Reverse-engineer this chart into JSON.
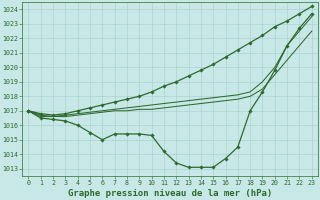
{
  "title": "Graphe pression niveau de la mer (hPa)",
  "hours": [
    0,
    1,
    2,
    3,
    4,
    5,
    6,
    7,
    8,
    9,
    10,
    11,
    12,
    13,
    14,
    15,
    16,
    17,
    18,
    19,
    20,
    21,
    22,
    23
  ],
  "line_top": [
    1017.0,
    1016.8,
    1016.7,
    1016.8,
    1017.0,
    1017.2,
    1017.4,
    1017.6,
    1017.8,
    1018.0,
    1018.3,
    1018.7,
    1019.0,
    1019.4,
    1019.8,
    1020.2,
    1020.7,
    1021.2,
    1021.7,
    1022.2,
    1022.8,
    1023.2,
    1023.7,
    1024.2
  ],
  "line_mid_high": [
    1017.0,
    1016.7,
    1016.6,
    1016.7,
    1016.8,
    1016.9,
    1017.0,
    1017.1,
    1017.2,
    1017.3,
    1017.4,
    1017.5,
    1017.6,
    1017.7,
    1017.8,
    1017.9,
    1018.0,
    1018.1,
    1018.3,
    1019.0,
    1020.0,
    1021.5,
    1022.5,
    1023.5
  ],
  "line_mid_low": [
    1017.0,
    1016.6,
    1016.6,
    1016.6,
    1016.7,
    1016.8,
    1016.9,
    1017.0,
    1017.0,
    1017.1,
    1017.1,
    1017.2,
    1017.3,
    1017.4,
    1017.5,
    1017.6,
    1017.7,
    1017.8,
    1018.0,
    1018.5,
    1019.5,
    1020.5,
    1021.5,
    1022.5
  ],
  "line_bottom": [
    1017.0,
    1016.5,
    1016.4,
    1016.3,
    1016.0,
    1015.5,
    1015.0,
    1015.4,
    1015.4,
    1015.4,
    1015.3,
    1014.2,
    1013.4,
    1013.1,
    1013.1,
    1013.1,
    1013.7,
    1014.5,
    1017.0,
    1018.3,
    1019.8,
    1021.5,
    1022.7,
    1023.7
  ],
  "ylim": [
    1012.5,
    1024.5
  ],
  "yticks": [
    1013,
    1014,
    1015,
    1016,
    1017,
    1018,
    1019,
    1020,
    1021,
    1022,
    1023,
    1024
  ],
  "line_color": "#2d6a2d",
  "bg_color": "#c8e8e8",
  "grid_color": "#a8cccc",
  "marker": "D",
  "marker_size": 1.8,
  "lw_marked": 0.9,
  "lw_plain": 0.75,
  "title_fontsize": 6.5,
  "tick_fontsize": 4.8
}
